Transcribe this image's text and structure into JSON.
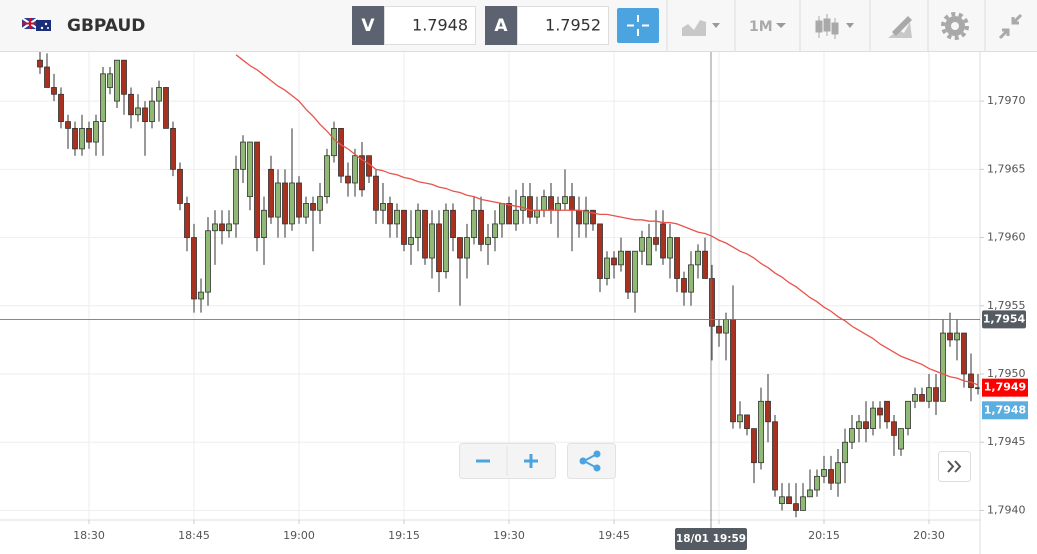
{
  "toolbar": {
    "symbol": "GBPAUD",
    "sell": {
      "label": "V",
      "price": 1.7948
    },
    "buy": {
      "label": "A",
      "price": 1.7952
    },
    "interval": "1M"
  },
  "chart_data": {
    "type": "candlestick",
    "categories": [
      null,
      null,
      null,
      null,
      null,
      null,
      null,
      "18:30",
      null,
      null,
      null,
      null,
      null,
      null,
      null,
      null,
      null,
      null,
      null,
      null,
      null,
      null,
      "18:45",
      null,
      null,
      null,
      null,
      null,
      null,
      null,
      null,
      null,
      null,
      null,
      null,
      null,
      null,
      "19:00",
      null,
      null,
      null,
      null,
      null,
      null,
      null,
      null,
      null,
      null,
      null,
      null,
      null,
      null,
      "19:15",
      null,
      null,
      null,
      null,
      null,
      null,
      null,
      null,
      null,
      null,
      null,
      null,
      null,
      null,
      "19:30",
      null,
      null,
      null,
      null,
      null,
      null,
      null,
      null,
      null,
      null,
      null,
      null,
      null,
      null,
      "19:45",
      null,
      null,
      null,
      null,
      null,
      null,
      null,
      null,
      null,
      null,
      null,
      null,
      null,
      null,
      "20:00",
      null,
      null,
      null,
      null,
      null,
      null,
      null,
      null,
      null,
      null,
      null,
      null,
      null,
      null,
      "20:15",
      null,
      null,
      null,
      null,
      null,
      null,
      null,
      null,
      null,
      null,
      null,
      null,
      null,
      null,
      "20:30",
      null,
      null,
      null,
      null,
      null,
      null,
      null
    ],
    "open": [
      1.7973,
      1.79725,
      1.7971,
      1.79705,
      1.79685,
      1.7968,
      1.79665,
      1.7968,
      1.7967,
      1.79685,
      1.7971,
      1.797,
      1.7973,
      1.79705,
      1.7969,
      1.79695,
      1.79685,
      1.797,
      1.7971,
      1.7968,
      1.7965,
      1.79625,
      1.796,
      1.79555,
      1.7956,
      1.79605,
      1.7961,
      1.79605,
      1.7961,
      1.7965,
      1.7963,
      1.7967,
      1.796,
      1.7965,
      1.79615,
      1.7964,
      1.7961,
      1.7964,
      1.79615,
      1.79625,
      1.7962,
      1.7963,
      1.7966,
      1.7968,
      1.79645,
      1.7964,
      1.7966,
      1.7966,
      1.79645,
      1.7962,
      1.79625,
      1.7961,
      1.7962,
      1.79595,
      1.796,
      1.7962,
      1.79585,
      1.7961,
      1.79575,
      1.7962,
      1.796,
      1.79585,
      1.796,
      1.7962,
      1.79595,
      1.796,
      1.7961,
      1.79625,
      1.7961,
      1.7962,
      1.7963,
      1.79615,
      1.7962,
      1.7963,
      1.7962,
      1.79625,
      1.7963,
      1.7962,
      1.7961,
      1.7962,
      1.7961,
      1.7957,
      1.79585,
      1.7958,
      1.7959,
      1.7956,
      1.7959,
      1.7958,
      1.796,
      1.7961,
      1.79585,
      1.796,
      1.7957,
      1.7956,
      1.7958,
      1.7959,
      1.7957,
      1.79535,
      1.7953,
      1.7954,
      1.79465,
      1.7947,
      1.7946,
      1.79435,
      1.7948,
      1.79465,
      1.79405,
      1.7941,
      1.79405,
      1.794,
      1.7941,
      1.79415,
      1.79425,
      1.7943,
      1.7942,
      1.79435,
      1.7945,
      1.7946,
      1.79465,
      1.7946,
      1.79475,
      1.7948,
      1.79465,
      1.79445,
      1.7946,
      1.7948,
      1.79485,
      1.7948,
      1.7949,
      1.7948,
      1.7953,
      1.79525,
      1.7953,
      1.795,
      1.7949
    ],
    "high": [
      1.7974,
      1.79735,
      1.7972,
      1.7971,
      1.7969,
      1.79685,
      1.7969,
      1.79685,
      1.7969,
      1.79725,
      1.79725,
      1.7973,
      1.7973,
      1.7971,
      1.79705,
      1.797,
      1.7971,
      1.79715,
      1.7971,
      1.79685,
      1.79655,
      1.7963,
      1.7961,
      1.7957,
      1.79615,
      1.7962,
      1.7962,
      1.7962,
      1.7966,
      1.79675,
      1.7967,
      1.7967,
      1.7963,
      1.7966,
      1.7965,
      1.7965,
      1.7968,
      1.79645,
      1.7963,
      1.7963,
      1.7964,
      1.79665,
      1.79685,
      1.7968,
      1.79655,
      1.79665,
      1.7967,
      1.7966,
      1.7965,
      1.7964,
      1.7963,
      1.79625,
      1.7962,
      1.7962,
      1.79625,
      1.7962,
      1.7962,
      1.7962,
      1.79625,
      1.79625,
      1.796,
      1.7961,
      1.7963,
      1.7963,
      1.7961,
      1.7962,
      1.79625,
      1.7963,
      1.79635,
      1.7964,
      1.7964,
      1.7963,
      1.79635,
      1.7964,
      1.7963,
      1.7965,
      1.7964,
      1.7963,
      1.7963,
      1.7962,
      1.7961,
      1.7959,
      1.7959,
      1.796,
      1.7959,
      1.7959,
      1.79605,
      1.7961,
      1.7962,
      1.7962,
      1.7961,
      1.796,
      1.79575,
      1.7959,
      1.79595,
      1.796,
      1.7958,
      1.7954,
      1.79545,
      1.79565,
      1.7948,
      1.7947,
      1.7946,
      1.7949,
      1.795,
      1.7947,
      1.7942,
      1.7942,
      1.7942,
      1.7942,
      1.7943,
      1.7943,
      1.7944,
      1.7944,
      1.79445,
      1.7946,
      1.7947,
      1.7947,
      1.7948,
      1.7948,
      1.7948,
      1.7948,
      1.7947,
      1.7946,
      1.7948,
      1.7949,
      1.7949,
      1.795,
      1.795,
      1.7954,
      1.79545,
      1.7954,
      1.7953,
      1.79515,
      1.795
    ],
    "low": [
      1.7972,
      1.7971,
      1.797,
      1.7968,
      1.79665,
      1.7966,
      1.7966,
      1.79665,
      1.7966,
      1.7966,
      1.79705,
      1.79695,
      1.7969,
      1.7968,
      1.79685,
      1.7966,
      1.7968,
      1.79685,
      1.7968,
      1.79645,
      1.7962,
      1.7959,
      1.79545,
      1.79545,
      1.7955,
      1.7958,
      1.79595,
      1.796,
      1.796,
      1.7964,
      1.7962,
      1.7959,
      1.7958,
      1.7961,
      1.796,
      1.796,
      1.79605,
      1.7961,
      1.7961,
      1.7959,
      1.7961,
      1.79625,
      1.79655,
      1.7964,
      1.7963,
      1.7963,
      1.7963,
      1.7964,
      1.7961,
      1.7961,
      1.796,
      1.796,
      1.7959,
      1.7958,
      1.7959,
      1.7958,
      1.7957,
      1.7956,
      1.7957,
      1.7959,
      1.7955,
      1.7957,
      1.79595,
      1.7959,
      1.7958,
      1.7959,
      1.796,
      1.7961,
      1.79605,
      1.7961,
      1.7961,
      1.7961,
      1.79615,
      1.7961,
      1.796,
      1.7962,
      1.7959,
      1.796,
      1.796,
      1.79605,
      1.7956,
      1.79565,
      1.7957,
      1.79575,
      1.79555,
      1.79545,
      1.7958,
      1.7958,
      1.7959,
      1.7958,
      1.7957,
      1.7956,
      1.7955,
      1.7955,
      1.7957,
      1.7957,
      1.7951,
      1.7952,
      1.7951,
      1.7946,
      1.7946,
      1.79455,
      1.7942,
      1.7943,
      1.7945,
      1.7941,
      1.794,
      1.79405,
      1.79395,
      1.794,
      1.7941,
      1.7941,
      1.7942,
      1.79415,
      1.7941,
      1.7942,
      1.79445,
      1.7945,
      1.7945,
      1.79455,
      1.7946,
      1.7946,
      1.7944,
      1.7944,
      1.79455,
      1.79475,
      1.7948,
      1.79475,
      1.7947,
      1.7948,
      1.7952,
      1.7951,
      1.7949,
      1.7948,
      1.79485
    ],
    "close": [
      1.79725,
      1.7971,
      1.79705,
      1.79685,
      1.7968,
      1.79665,
      1.7968,
      1.7967,
      1.79685,
      1.7972,
      1.7972,
      1.7973,
      1.79705,
      1.7969,
      1.79695,
      1.79685,
      1.797,
      1.7971,
      1.7968,
      1.7965,
      1.79625,
      1.796,
      1.79555,
      1.7956,
      1.79605,
      1.7961,
      1.79605,
      1.7961,
      1.7965,
      1.7967,
      1.7967,
      1.796,
      1.7962,
      1.79615,
      1.7964,
      1.7961,
      1.7964,
      1.79615,
      1.79625,
      1.7962,
      1.7963,
      1.7966,
      1.7968,
      1.79645,
      1.7964,
      1.7966,
      1.79635,
      1.79645,
      1.7962,
      1.79625,
      1.7961,
      1.7962,
      1.79595,
      1.796,
      1.7962,
      1.79585,
      1.7961,
      1.79575,
      1.7962,
      1.796,
      1.79585,
      1.796,
      1.7962,
      1.79595,
      1.796,
      1.7961,
      1.79625,
      1.7961,
      1.7962,
      1.7963,
      1.79615,
      1.7962,
      1.7963,
      1.7962,
      1.79625,
      1.7963,
      1.7962,
      1.7961,
      1.7962,
      1.7961,
      1.7957,
      1.79585,
      1.7958,
      1.7959,
      1.7956,
      1.7959,
      1.796,
      1.796,
      1.79595,
      1.79585,
      1.796,
      1.7957,
      1.7956,
      1.7958,
      1.7959,
      1.7957,
      1.79535,
      1.7953,
      1.7954,
      1.79465,
      1.7947,
      1.7946,
      1.79435,
      1.7948,
      1.79465,
      1.79415,
      1.7941,
      1.79405,
      1.794,
      1.7941,
      1.79415,
      1.79425,
      1.7943,
      1.7942,
      1.79435,
      1.7945,
      1.7946,
      1.79465,
      1.7946,
      1.79475,
      1.7947,
      1.79465,
      1.79455,
      1.7946,
      1.7948,
      1.79485,
      1.7948,
      1.7949,
      1.7948,
      1.7953,
      1.79525,
      1.7953,
      1.795,
      1.7949,
      1.7949
    ],
    "up_color": "#8fb974",
    "down_color": "#a8321f",
    "moving_average": {
      "color": "#e8544b",
      "values": [
        null,
        null,
        null,
        null,
        null,
        null,
        null,
        null,
        null,
        null,
        null,
        null,
        null,
        null,
        null,
        null,
        null,
        null,
        null,
        null,
        null,
        null,
        null,
        null,
        null,
        null,
        null,
        null,
        1.79734,
        1.7973,
        1.79726,
        1.79723,
        1.79719,
        1.79715,
        1.79711,
        1.79708,
        1.79704,
        1.797,
        1.79694,
        1.79689,
        1.79683,
        1.79678,
        1.79672,
        1.79668,
        1.79665,
        1.79661,
        1.79657,
        1.79654,
        1.7965,
        1.79649,
        1.79647,
        1.79646,
        1.79644,
        1.79643,
        1.79641,
        1.7964,
        1.79639,
        1.79637,
        1.79636,
        1.79634,
        1.79633,
        1.79631,
        1.7963,
        1.79628,
        1.79627,
        1.79626,
        1.79625,
        1.79624,
        1.79623,
        1.79622,
        1.7962,
        1.7962,
        1.7962,
        1.7962,
        1.7962,
        1.7962,
        1.7962,
        1.7962,
        1.79619,
        1.79618,
        1.79617,
        1.79617,
        1.79616,
        1.79615,
        1.79614,
        1.79613,
        1.79613,
        1.79612,
        1.79612,
        1.79611,
        1.79611,
        1.7961,
        1.79608,
        1.79606,
        1.79604,
        1.79603,
        1.79601,
        1.79598,
        1.79596,
        1.79593,
        1.7959,
        1.79588,
        1.79585,
        1.79581,
        1.79578,
        1.79574,
        1.79571,
        1.79567,
        1.79564,
        1.7956,
        1.79556,
        1.79553,
        1.79549,
        1.79546,
        1.79542,
        1.79539,
        1.79535,
        1.79532,
        1.79529,
        1.79526,
        1.79522,
        1.79519,
        1.79516,
        1.79513,
        1.79511,
        1.79509,
        1.79507,
        1.79504,
        1.79502,
        1.795,
        1.79498,
        1.79497,
        1.79495,
        1.79494,
        1.79492
      ]
    },
    "ylim": [
      1.79393,
      1.79736
    ],
    "yticks": [
      {
        "value": 1.794,
        "label": "1,7940"
      },
      {
        "value": 1.7945,
        "label": "1,7945"
      },
      {
        "value": 1.795,
        "label": "1,7950"
      },
      {
        "value": 1.7955,
        "label": "1,7955"
      },
      {
        "value": 1.796,
        "label": "1,7960"
      },
      {
        "value": 1.7965,
        "label": "1,7965"
      },
      {
        "value": 1.797,
        "label": "1,7970"
      }
    ],
    "grid": true,
    "crosshair": {
      "time_label": "18/01 19:59",
      "price": {
        "value": 1.7954,
        "label": "1,7954"
      }
    },
    "price_tags": [
      {
        "value": 1.7949,
        "label": "1,7949",
        "color": "#ff0000"
      },
      {
        "value": 1.7948,
        "label": "1,7948",
        "color": "#5aaee0"
      }
    ]
  }
}
